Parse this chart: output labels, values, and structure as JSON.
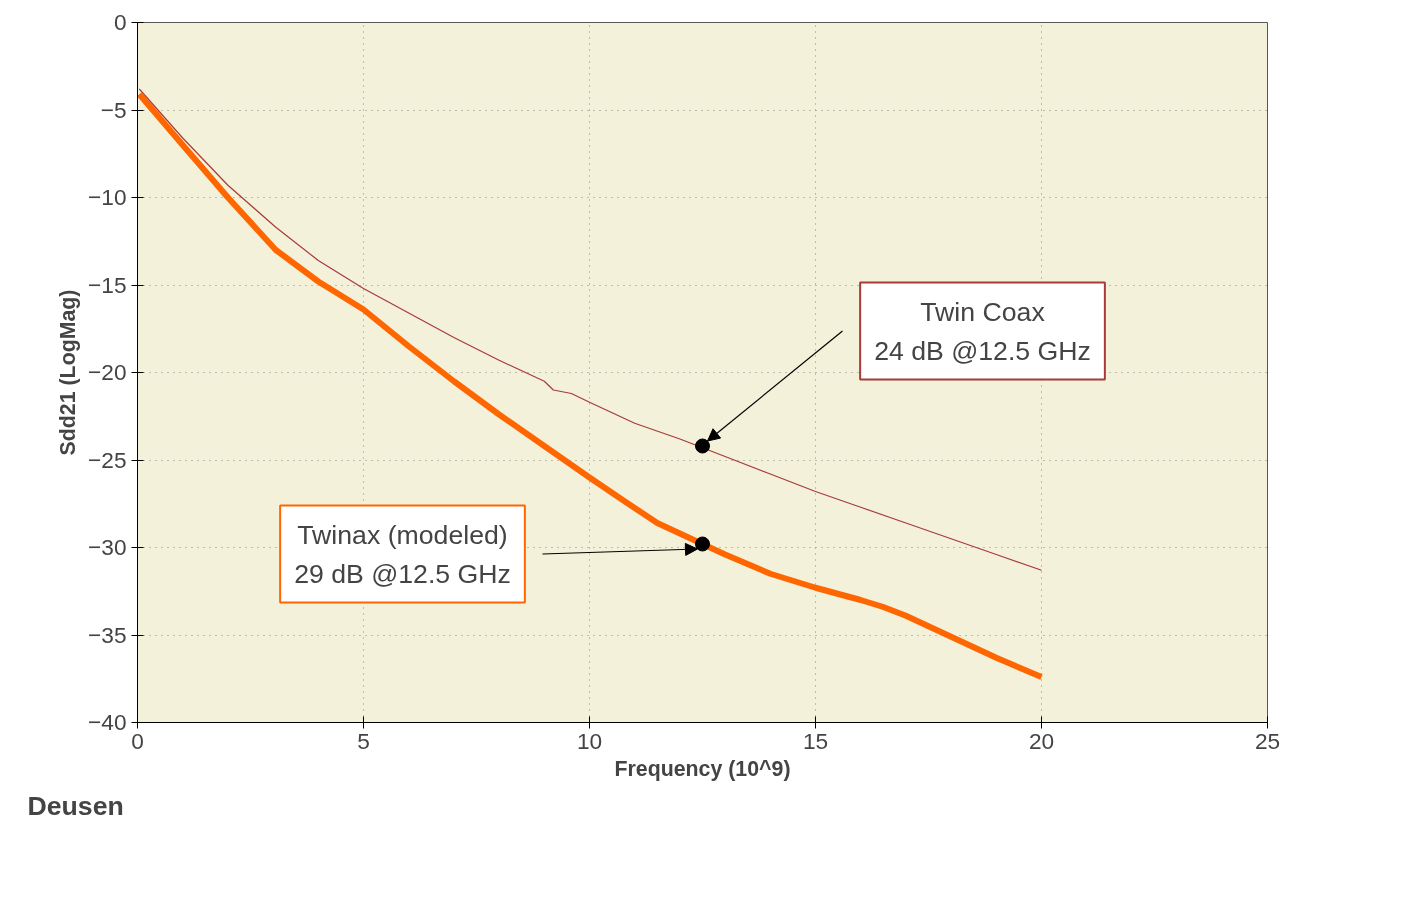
{
  "chart_data": {
    "type": "line",
    "xlabel": "Frequency (10^9)",
    "ylabel": "Sdd21 (LogMag)",
    "xlim": [
      0,
      25
    ],
    "ylim": [
      -40,
      0
    ],
    "xticks": [
      0,
      5,
      10,
      15,
      20,
      25
    ],
    "yticks": [
      0,
      -5,
      -10,
      -15,
      -20,
      -25,
      -30,
      -35,
      -40
    ],
    "grid": true,
    "marker": "none",
    "line_style": "solid",
    "series": [
      {
        "color": "#a83a3a",
        "x": [
          0.04,
          1,
          2,
          3.06,
          4,
          5,
          6,
          7,
          8,
          9,
          9.2,
          9.6,
          10,
          10.5,
          11,
          12,
          12.5,
          13,
          14,
          15,
          16,
          17,
          18,
          19,
          20
        ],
        "values": [
          -3.8,
          -6.6,
          -9.3,
          -11.7,
          -13.6,
          -15.2,
          -16.6,
          -18,
          -19.3,
          -20.5,
          -21.0,
          -21.2,
          -21.7,
          -22.3,
          -22.9,
          -23.8,
          -24.3,
          -24.8,
          -25.8,
          -26.8,
          -27.7,
          -28.6,
          -29.5,
          -30.4,
          -31.3
        ]
      },
      {
        "color": "#ff6600",
        "x": [
          0.04,
          1,
          2,
          3.06,
          4,
          5,
          6,
          7,
          8,
          9,
          10,
          10.8,
          11.5,
          12.5,
          13,
          14,
          15,
          16,
          16.5,
          17,
          18,
          19,
          20
        ],
        "values": [
          -4.1,
          -7.0,
          -10.0,
          -13.0,
          -14.8,
          -16.4,
          -18.5,
          -20.5,
          -22.4,
          -24.2,
          -26.0,
          -27.4,
          -28.6,
          -29.8,
          -30.4,
          -31.5,
          -32.3,
          -33.0,
          -33.4,
          -33.9,
          -35.1,
          -36.3,
          -37.4
        ]
      }
    ],
    "annotations": [
      {
        "text": "Twin Coax\n24 dB @12.5 GHz",
        "x": 12.5,
        "y": -24.2
      },
      {
        "text": "Twinax (modeled)\n29 dB @12.5 GHz",
        "x": 12.5,
        "y": -29.8
      },
      "Deusen"
    ]
  }
}
